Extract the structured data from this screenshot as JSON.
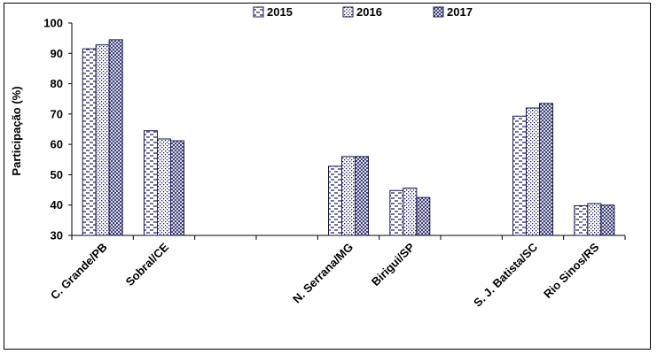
{
  "chart_data": {
    "type": "bar",
    "title": "",
    "xlabel": "",
    "ylabel": "Participação (%)",
    "ylim": [
      30,
      100
    ],
    "yticks": [
      30,
      40,
      50,
      60,
      70,
      80,
      90,
      100
    ],
    "legend_position": "top",
    "grid": false,
    "categories": [
      "C. Grande/PB",
      "Sobral/CE",
      "",
      "",
      "N. Serrana/MG",
      "Birigui/SP",
      "",
      "S. J. Batista/SC",
      "Rio Sinos/RS"
    ],
    "series": [
      {
        "name": "2015",
        "pattern": "dashes",
        "values": [
          91.5,
          64.5,
          null,
          null,
          52.8,
          44.8,
          null,
          69.3,
          39.8
        ]
      },
      {
        "name": "2016",
        "pattern": "dots",
        "values": [
          92.8,
          61.8,
          null,
          null,
          56.0,
          45.6,
          null,
          72.0,
          40.5
        ]
      },
      {
        "name": "2017",
        "pattern": "crosshatch",
        "values": [
          94.5,
          61.2,
          null,
          null,
          56.0,
          42.5,
          null,
          73.5,
          40.0
        ]
      }
    ]
  }
}
